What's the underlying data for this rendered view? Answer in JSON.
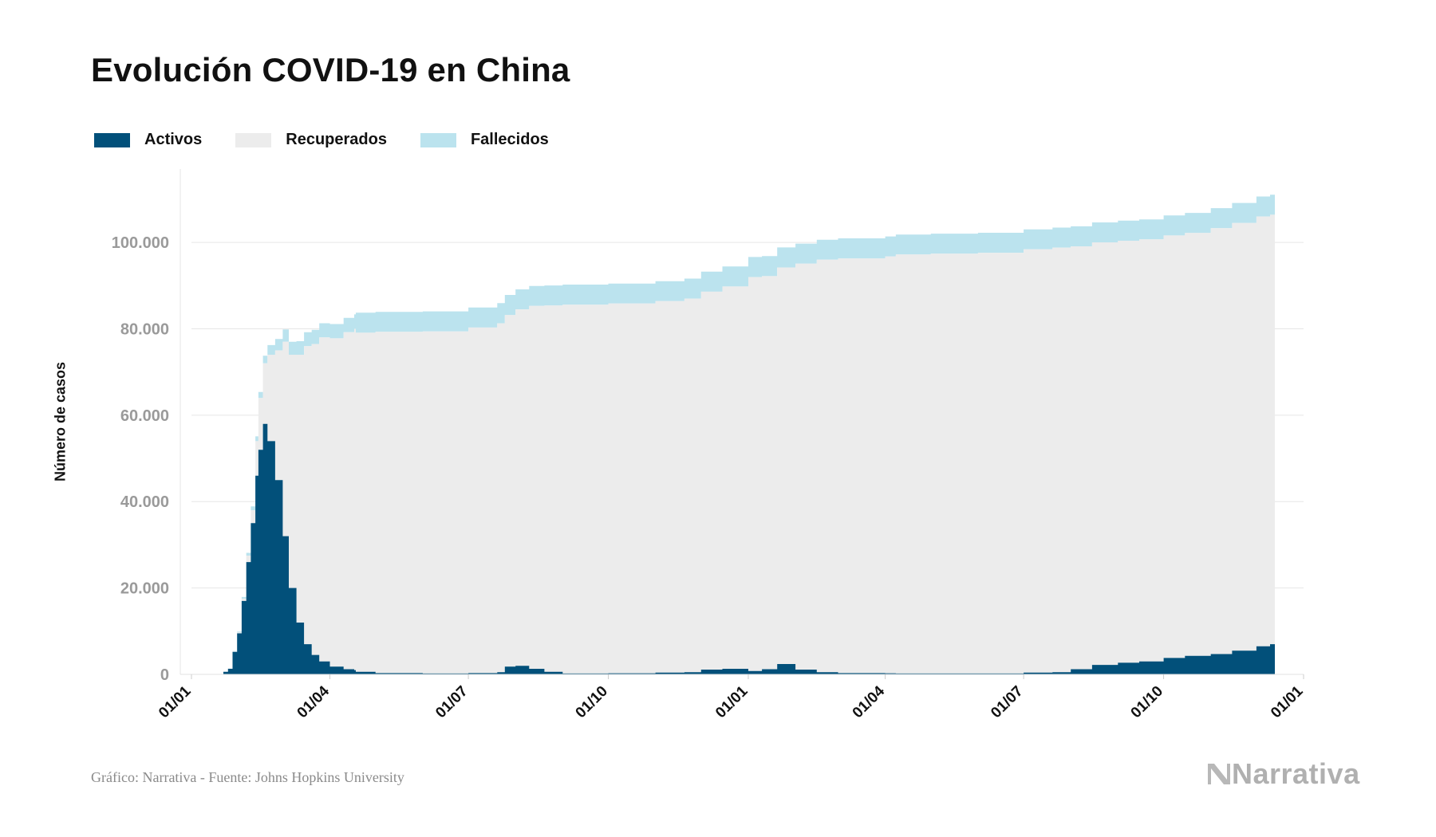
{
  "chart_data": {
    "type": "area",
    "stacked": true,
    "title": "Evolución COVID-19 en China",
    "ylabel": "Número de casos",
    "xlabel": "",
    "x_tick_labels": [
      "01/01",
      "01/04",
      "01/07",
      "01/10",
      "01/01",
      "01/04",
      "01/07",
      "01/10",
      "01/01"
    ],
    "x_tick_dates": [
      "2020-01-01",
      "2020-04-01",
      "2020-07-01",
      "2020-10-01",
      "2021-01-01",
      "2021-04-01",
      "2021-07-01",
      "2021-10-01",
      "2022-01-01"
    ],
    "y_tick_labels": [
      "0",
      "20.000",
      "40.000",
      "60.000",
      "80.000",
      "100.000"
    ],
    "y_ticks": [
      0,
      20000,
      40000,
      60000,
      80000,
      100000
    ],
    "ylim": [
      0,
      117000
    ],
    "grid": true,
    "legend_position": "top-left",
    "x": [
      "2020-01-22",
      "2020-01-25",
      "2020-01-28",
      "2020-01-31",
      "2020-02-03",
      "2020-02-06",
      "2020-02-09",
      "2020-02-12",
      "2020-02-14",
      "2020-02-17",
      "2020-02-20",
      "2020-02-25",
      "2020-03-01",
      "2020-03-05",
      "2020-03-10",
      "2020-03-15",
      "2020-03-20",
      "2020-03-25",
      "2020-04-01",
      "2020-04-10",
      "2020-04-17",
      "2020-04-18",
      "2020-05-01",
      "2020-06-01",
      "2020-07-01",
      "2020-07-20",
      "2020-07-25",
      "2020-08-01",
      "2020-08-10",
      "2020-08-20",
      "2020-09-01",
      "2020-10-01",
      "2020-11-01",
      "2020-11-20",
      "2020-12-01",
      "2020-12-15",
      "2021-01-01",
      "2021-01-10",
      "2021-01-20",
      "2021-02-01",
      "2021-02-15",
      "2021-03-01",
      "2021-04-01",
      "2021-04-08",
      "2021-05-01",
      "2021-06-01",
      "2021-07-01",
      "2021-07-20",
      "2021-08-01",
      "2021-08-15",
      "2021-09-01",
      "2021-09-15",
      "2021-10-01",
      "2021-10-15",
      "2021-11-01",
      "2021-11-15",
      "2021-12-01",
      "2021-12-10"
    ],
    "series": [
      {
        "name": "Activos",
        "color": "#02507a",
        "values": [
          600,
          1300,
          5200,
          9500,
          17000,
          26000,
          35000,
          46000,
          52000,
          58000,
          54000,
          45000,
          32000,
          20000,
          12000,
          7000,
          4500,
          3000,
          1800,
          1200,
          1000,
          600,
          300,
          200,
          300,
          500,
          1800,
          2000,
          1300,
          600,
          200,
          250,
          400,
          500,
          1100,
          1300,
          800,
          1200,
          2400,
          1100,
          500,
          300,
          250,
          200,
          200,
          200,
          400,
          500,
          1200,
          2200,
          2700,
          3000,
          3800,
          4300,
          4700,
          5500,
          6500,
          7000
        ]
      },
      {
        "name": "Recuperados",
        "color": "#ececec",
        "values": [
          30,
          50,
          100,
          200,
          500,
          1500,
          3000,
          8000,
          12000,
          14000,
          20000,
          30000,
          45000,
          54000,
          62000,
          69000,
          72000,
          75000,
          76000,
          78000,
          79000,
          78500,
          79000,
          79200,
          80000,
          80800,
          81400,
          82500,
          84000,
          84800,
          85400,
          85600,
          86000,
          86500,
          87500,
          88500,
          91200,
          91000,
          91800,
          94000,
          95500,
          96000,
          96500,
          97000,
          97200,
          97400,
          98000,
          98300,
          97900,
          97800,
          97700,
          97700,
          97800,
          97900,
          98600,
          99000,
          99500,
          99400
        ]
      },
      {
        "name": "Fallecidos",
        "color": "#bbe3ee",
        "values": [
          17,
          56,
          132,
          213,
          425,
          636,
          908,
          1113,
          1381,
          1770,
          2236,
          2663,
          2870,
          3015,
          3139,
          3213,
          3253,
          3287,
          3312,
          3339,
          3342,
          4632,
          4633,
          4634,
          4634,
          4634,
          4634,
          4634,
          4634,
          4634,
          4634,
          4634,
          4634,
          4634,
          4634,
          4634,
          4634,
          4635,
          4635,
          4636,
          4636,
          4636,
          4636,
          4636,
          4636,
          4636,
          4636,
          4636,
          4636,
          4636,
          4636,
          4636,
          4636,
          4636,
          4636,
          4636,
          4636,
          4636
        ]
      }
    ]
  },
  "footer": {
    "source": "Gráfico: Narrativa - Fuente: Johns Hopkins University",
    "logo_text": "Narrativa",
    "logo_icon": "narrativa-n-icon"
  }
}
